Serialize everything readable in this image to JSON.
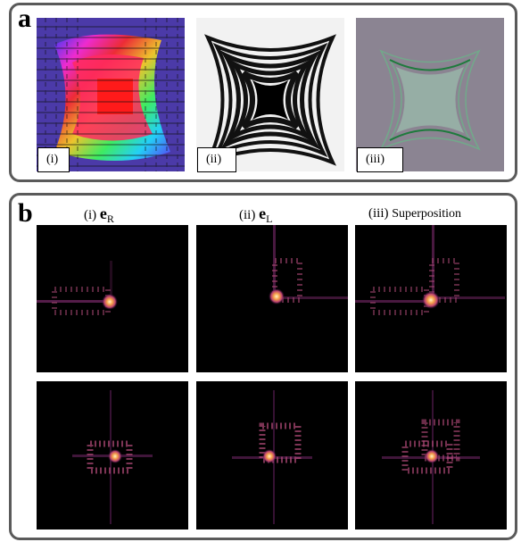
{
  "panel_a": {
    "label": "a",
    "images": [
      {
        "sublabel": "(i)",
        "kind": "polarization-orientation-map"
      },
      {
        "sublabel": "(ii)",
        "kind": "interference-fringes"
      },
      {
        "sublabel": "(iii)",
        "kind": "micrograph"
      }
    ]
  },
  "panel_b": {
    "label": "b",
    "columns": [
      {
        "prefix": "(i)",
        "symbol": "e",
        "subscript": "R",
        "text": ""
      },
      {
        "prefix": "(ii)",
        "symbol": "e",
        "subscript": "L",
        "text": ""
      },
      {
        "prefix": "(iii)",
        "symbol": "",
        "subscript": "",
        "text": "Superposition"
      }
    ]
  },
  "colors": {
    "frame": "#5a5a5a",
    "heat_peak": "#ffe9b0",
    "heat_mid": "#c14a6e",
    "heat_low": "#3b0f4f"
  }
}
